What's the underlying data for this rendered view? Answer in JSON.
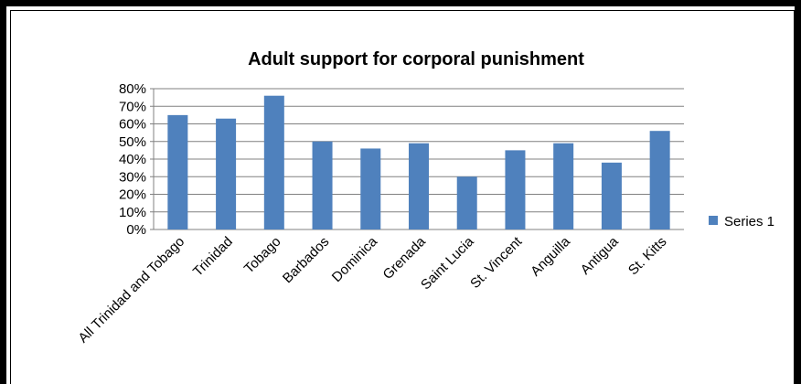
{
  "chart_data": {
    "type": "bar",
    "title": "Adult support for corporal punishment",
    "xlabel": "",
    "ylabel": "",
    "categories": [
      "All Trinidad and Tobago",
      "Trinidad",
      "Tobago",
      "Barbados",
      "Dominica",
      "Grenada",
      "Saint Lucia",
      "St. Vincent",
      "Anguilla",
      "Antigua",
      "St. Kitts"
    ],
    "series": [
      {
        "name": "Series 1",
        "values": [
          0.65,
          0.63,
          0.76,
          0.5,
          0.46,
          0.49,
          0.3,
          0.45,
          0.49,
          0.38,
          0.56
        ]
      }
    ],
    "ylim": [
      0,
      0.8
    ],
    "yticks": [
      "0%",
      "10%",
      "20%",
      "30%",
      "40%",
      "50%",
      "60%",
      "70%",
      "80%"
    ],
    "grid": true,
    "legend": "right",
    "colors": {
      "bar": "#4f81bd",
      "grid": "#808080",
      "axis": "#808080"
    }
  }
}
